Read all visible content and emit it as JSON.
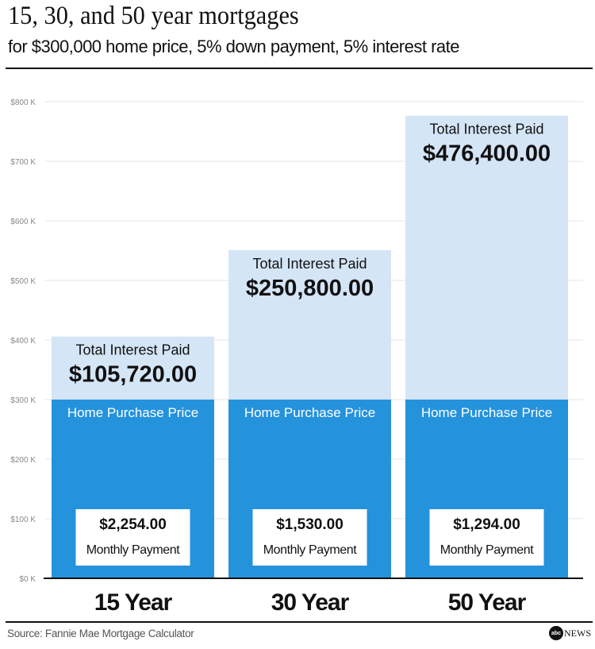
{
  "title": "15, 30, and 50 year mortgages",
  "subtitle": "for $300,000 home price, 5% down payment, 5% interest rate",
  "source": "Source: Fannie Mae Mortgage Calculator",
  "logo": "abc NEWS",
  "colors": {
    "home_price": "#2592dc",
    "interest": "#d4e5f6",
    "grid": "#e6e6e6",
    "axis": "#111111"
  },
  "chart_data": {
    "type": "bar",
    "stacked": true,
    "categories": [
      "15 Year",
      "30 Year",
      "50 Year"
    ],
    "ylim": [
      0,
      800000
    ],
    "yticks": [
      0,
      100000,
      200000,
      300000,
      400000,
      500000,
      600000,
      700000,
      800000
    ],
    "ytick_labels": [
      "$0 K",
      "$100 K",
      "$200 K",
      "$300 K",
      "$400 K",
      "$500 K",
      "$600 K",
      "$700 K",
      "$800 K"
    ],
    "grid": true,
    "series": [
      {
        "name": "Home Purchase Price",
        "values": [
          300000,
          300000,
          300000
        ]
      },
      {
        "name": "Total Interest Paid",
        "values": [
          105720,
          250800,
          476400
        ],
        "labels": [
          "$105,720.00",
          "$250,800.00",
          "$476,400.00"
        ]
      }
    ],
    "monthly_payment": {
      "label": "Monthly Payment",
      "values": [
        "$2,254.00",
        "$1,530.00",
        "$1,294.00"
      ]
    }
  }
}
